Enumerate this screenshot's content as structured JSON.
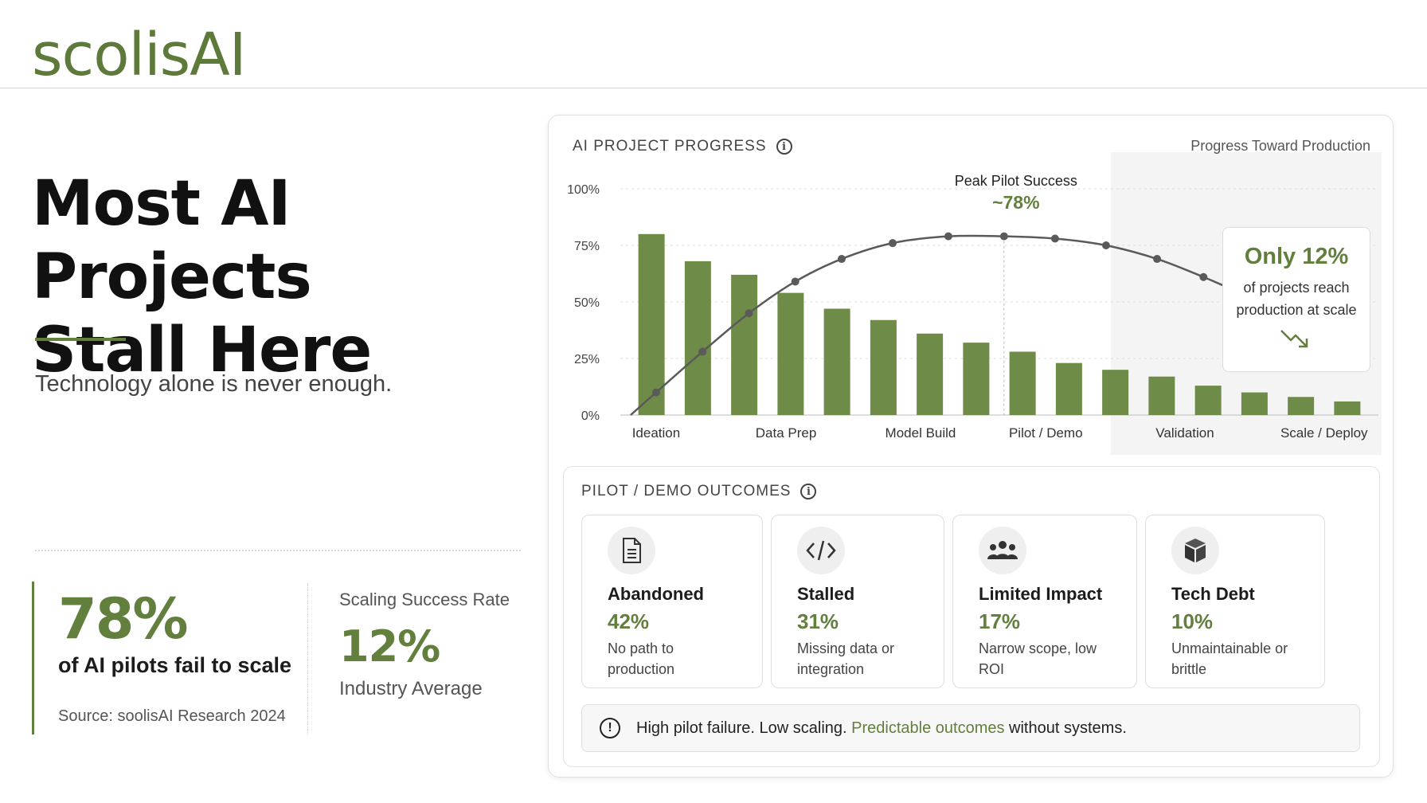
{
  "brand": {
    "logo": "scolisAI"
  },
  "hero": {
    "headline_line1": "Most AI Projects",
    "headline_line2": "Stall Here",
    "tagline": "Technology alone is never enough."
  },
  "stats": {
    "fail_pct": "78%",
    "fail_desc": "of AI pilots fail to scale",
    "fail_source": "Source: soolisAI Research 2024",
    "scale_label": "Scaling Success Rate",
    "scale_pct": "12%",
    "scale_sub": "Industry Average"
  },
  "chart_card": {
    "title": "AI PROJECT PROGRESS",
    "subtitle": "Progress Toward Production",
    "callout": {
      "big": "Only 12%",
      "small": "of projects reach production at scale",
      "icon": "trend-down-icon"
    }
  },
  "chart_data": {
    "type": "bar",
    "title": "AI PROJECT PROGRESS",
    "subtitle": "Progress Toward Production",
    "y_ticks": [
      "0%",
      "25%",
      "50%",
      "75%",
      "100%"
    ],
    "ylim": [
      0,
      100
    ],
    "stage_labels": [
      "Ideation",
      "Data Prep",
      "Model Build",
      "Pilot / Demo",
      "Validation",
      "Scale / Deploy"
    ],
    "bars": [
      80,
      68,
      62,
      54,
      47,
      42,
      36,
      32,
      28,
      23,
      20,
      17,
      13,
      10,
      8,
      6
    ],
    "curve": {
      "type": "line",
      "points": [
        {
          "x": 0.6,
          "y": 10
        },
        {
          "x": 1.6,
          "y": 28
        },
        {
          "x": 2.6,
          "y": 45
        },
        {
          "x": 3.6,
          "y": 59
        },
        {
          "x": 4.6,
          "y": 69
        },
        {
          "x": 5.7,
          "y": 76
        },
        {
          "x": 6.9,
          "y": 79
        },
        {
          "x": 8.1,
          "y": 79
        },
        {
          "x": 9.2,
          "y": 78
        },
        {
          "x": 10.3,
          "y": 75
        },
        {
          "x": 11.4,
          "y": 69
        },
        {
          "x": 12.4,
          "y": 61
        },
        {
          "x": 13.3,
          "y": 53
        }
      ]
    },
    "peak": {
      "label": "Peak Pilot Success",
      "value": "~78%",
      "x": 8.1,
      "y": 79
    },
    "shaded_from_x": 10.4,
    "grid": "horizontal-dotted",
    "colors": {
      "bars": "#6e8b48",
      "curve": "#5a5a5a",
      "shade": "#f4f4f4"
    }
  },
  "outcomes": {
    "title": "PILOT / DEMO OUTCOMES",
    "tiles": [
      {
        "name": "Abandoned",
        "pct": "42%",
        "desc": "No path to production",
        "icon": "document-icon"
      },
      {
        "name": "Stalled",
        "pct": "31%",
        "desc": "Missing data or integration",
        "icon": "code-icon"
      },
      {
        "name": "Limited Impact",
        "pct": "17%",
        "desc": "Narrow scope, low ROI",
        "icon": "people-icon"
      },
      {
        "name": "Tech Debt",
        "pct": "10%",
        "desc": "Unmaintainable or brittle",
        "icon": "box-icon"
      }
    ],
    "note": {
      "prefix": "High pilot failure. Low scaling.",
      "highlight": "Predictable outcomes",
      "suffix": "without systems."
    }
  },
  "colors": {
    "brand_green": "#627f3e",
    "text": "#1c1c1c"
  }
}
